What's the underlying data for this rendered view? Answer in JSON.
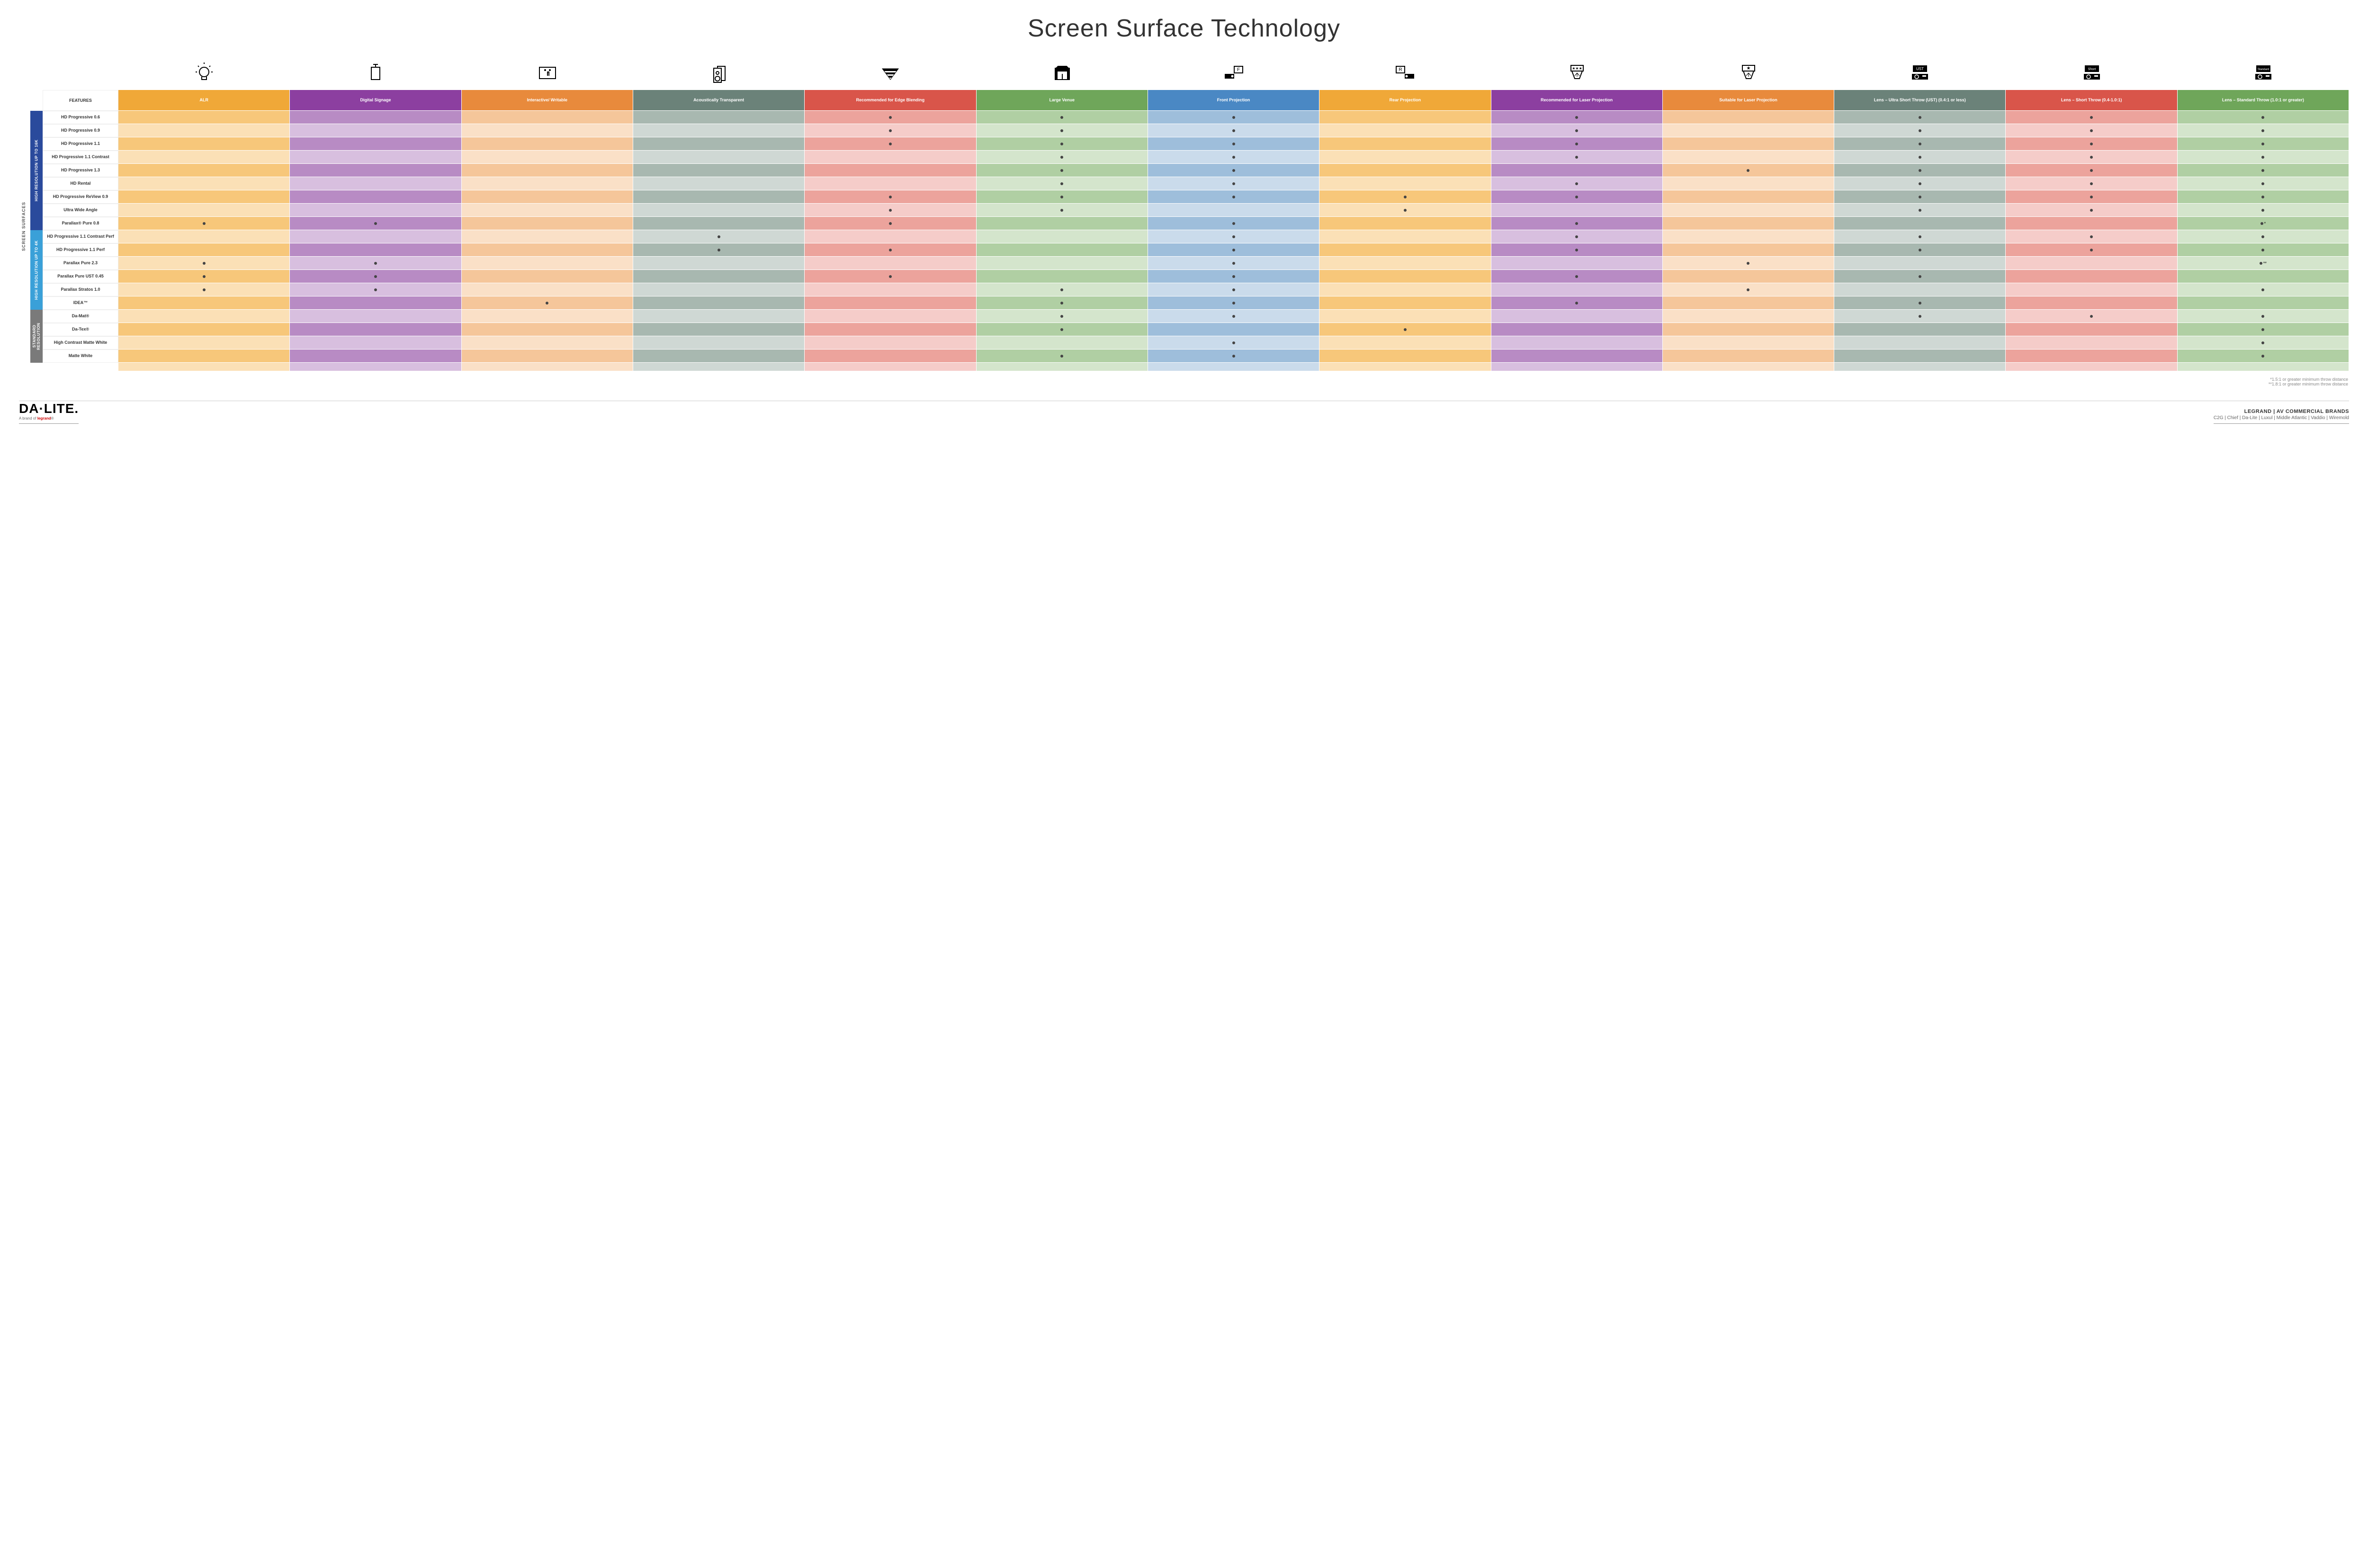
{
  "title": "Screen Surface Technology",
  "columns": [
    {
      "key": "alr",
      "label": "ALR",
      "bg": "#f0a838",
      "alt": "#f7c77a",
      "icon": "bulb"
    },
    {
      "key": "ds",
      "label": "Digital Signage",
      "bg": "#8c3fa0",
      "alt": "#b88bc4",
      "icon": "signage"
    },
    {
      "key": "iw",
      "label": "Interactive/ Writable",
      "bg": "#e88a3c",
      "alt": "#f5c69a",
      "icon": "touch"
    },
    {
      "key": "at",
      "label": "Acoustically Transparent",
      "bg": "#6b8279",
      "alt": "#a8b8b0",
      "icon": "speaker"
    },
    {
      "key": "eb",
      "label": "Recommended for Edge Blending",
      "bg": "#d9554a",
      "alt": "#eca39c",
      "icon": "blend"
    },
    {
      "key": "lv",
      "label": "Large Venue",
      "bg": "#6fa65a",
      "alt": "#b0cfa3",
      "icon": "venue"
    },
    {
      "key": "fp",
      "label": "Front Projection",
      "bg": "#4a88c4",
      "alt": "#9ebedb",
      "icon": "front"
    },
    {
      "key": "rp",
      "label": "Rear Projection",
      "bg": "#f0a838",
      "alt": "#f7c77a",
      "icon": "rear"
    },
    {
      "key": "rl",
      "label": "Recommended for Laser Projection",
      "bg": "#8c3fa0",
      "alt": "#b88bc4",
      "icon": "laser1"
    },
    {
      "key": "sl",
      "label": "Suitable for Laser Projection",
      "bg": "#e88a3c",
      "alt": "#f5c69a",
      "icon": "laser2"
    },
    {
      "key": "ust",
      "label": "Lens – Ultra Short Throw (UST) (0.4:1 or less)",
      "bg": "#6b8279",
      "alt": "#a8b8b0",
      "icon": "ust"
    },
    {
      "key": "st",
      "label": "Lens – Short Throw (0.4-1.0:1)",
      "bg": "#d9554a",
      "alt": "#eca39c",
      "icon": "short"
    },
    {
      "key": "std",
      "label": "Lens – Standard Throw (1.0:1 or greater)",
      "bg": "#6fa65a",
      "alt": "#b0cfa3",
      "icon": "standard"
    }
  ],
  "groups": [
    {
      "label": "HIGH RESOLUTION UP TO 16K",
      "bg": "#2a4a9c",
      "rows": [
        {
          "name": "HD Progressive 0.6",
          "dots": {
            "eb": "•",
            "lv": "•",
            "fp": "•",
            "rl": "•",
            "ust": "•",
            "st": "•",
            "std": "•"
          }
        },
        {
          "name": "HD Progressive 0.9",
          "dots": {
            "eb": "•",
            "lv": "•",
            "fp": "•",
            "rl": "•",
            "ust": "•",
            "st": "•",
            "std": "•"
          }
        },
        {
          "name": "HD Progressive 1.1",
          "dots": {
            "eb": "•",
            "lv": "•",
            "fp": "•",
            "rl": "•",
            "ust": "•",
            "st": "•",
            "std": "•"
          }
        },
        {
          "name": "HD Progressive 1.1 Contrast",
          "dots": {
            "lv": "•",
            "fp": "•",
            "rl": "•",
            "ust": "•",
            "st": "•",
            "std": "•"
          }
        },
        {
          "name": "HD Progressive 1.3",
          "dots": {
            "lv": "•",
            "fp": "•",
            "sl": "•",
            "ust": "•",
            "st": "•",
            "std": "•"
          }
        },
        {
          "name": "HD Rental",
          "dots": {
            "lv": "•",
            "fp": "•",
            "rl": "•",
            "ust": "•",
            "st": "•",
            "std": "•"
          }
        },
        {
          "name": "HD Progressive ReView 0.9",
          "dots": {
            "eb": "•",
            "lv": "•",
            "fp": "•",
            "rp": "•",
            "rl": "•",
            "ust": "•",
            "st": "•",
            "std": "•"
          }
        },
        {
          "name": "Ultra Wide Angle",
          "dots": {
            "eb": "•",
            "lv": "•",
            "rp": "•",
            "ust": "•",
            "st": "•",
            "std": "•"
          }
        },
        {
          "name": "Parallax® Pure 0.8",
          "dots": {
            "alr": "•",
            "ds": "•",
            "eb": "•",
            "fp": "•",
            "rl": "•",
            "std": "•*"
          }
        }
      ]
    },
    {
      "label": "HIGH RESOLUTION UP TO 4K",
      "bg": "#3aa0d8",
      "rows": [
        {
          "name": "HD Progressive 1.1 Contrast Perf",
          "dots": {
            "at": "•",
            "fp": "•",
            "rl": "•",
            "ust": "•",
            "st": "•",
            "std": "•"
          }
        },
        {
          "name": "HD Progressive 1.1 Perf",
          "dots": {
            "at": "•",
            "eb": "•",
            "fp": "•",
            "rl": "•",
            "ust": "•",
            "st": "•",
            "std": "•"
          }
        },
        {
          "name": "Parallax Pure 2.3",
          "dots": {
            "alr": "•",
            "ds": "•",
            "fp": "•",
            "sl": "•",
            "std": "•**"
          }
        },
        {
          "name": "Parallax Pure UST 0.45",
          "dots": {
            "alr": "•",
            "ds": "•",
            "eb": "•",
            "fp": "•",
            "rl": "•",
            "ust": "•"
          }
        },
        {
          "name": "Parallax Stratos 1.0",
          "dots": {
            "alr": "•",
            "ds": "•",
            "lv": "•",
            "fp": "•",
            "sl": "•",
            "std": "•"
          }
        },
        {
          "name": "IDEA™",
          "dots": {
            "iw": "•",
            "lv": "•",
            "fp": "•",
            "rl": "•",
            "ust": "•"
          }
        }
      ]
    },
    {
      "label": "STANDARD RESOLUTION",
      "bg": "#7a7a7a",
      "rows": [
        {
          "name": "Da-Mat®",
          "dots": {
            "lv": "•",
            "fp": "•",
            "ust": "•",
            "st": "•",
            "std": "•"
          }
        },
        {
          "name": "Da-Tex®",
          "dots": {
            "lv": "•",
            "rp": "•",
            "std": "•"
          }
        },
        {
          "name": "High Contrast Matte White",
          "dots": {
            "fp": "•",
            "std": "•"
          }
        },
        {
          "name": "Matte White",
          "dots": {
            "lv": "•",
            "fp": "•",
            "std": "•"
          }
        }
      ]
    }
  ],
  "featuresLabel": "FEATURES",
  "vertLabel": "SCREEN SURFACES",
  "footnote1": "*1.5:1 or greater minimum throw distance",
  "footnote2": "**1.8:1 or greater minimum throw distance",
  "logo": "DA·LITE.",
  "logoSub": "A brand of ",
  "logoSubBrand": "legrand",
  "brandsTitle": "LEGRAND | AV COMMERCIAL BRANDS",
  "brandsList": "C2G  |  Chief  |  Da-Lite  |  Luxul  |  Middle Atlantic  |  Vaddio  |  Wiremold",
  "altShadeEven": "#fdf4e0",
  "altShadeOdd": "#ffffff"
}
